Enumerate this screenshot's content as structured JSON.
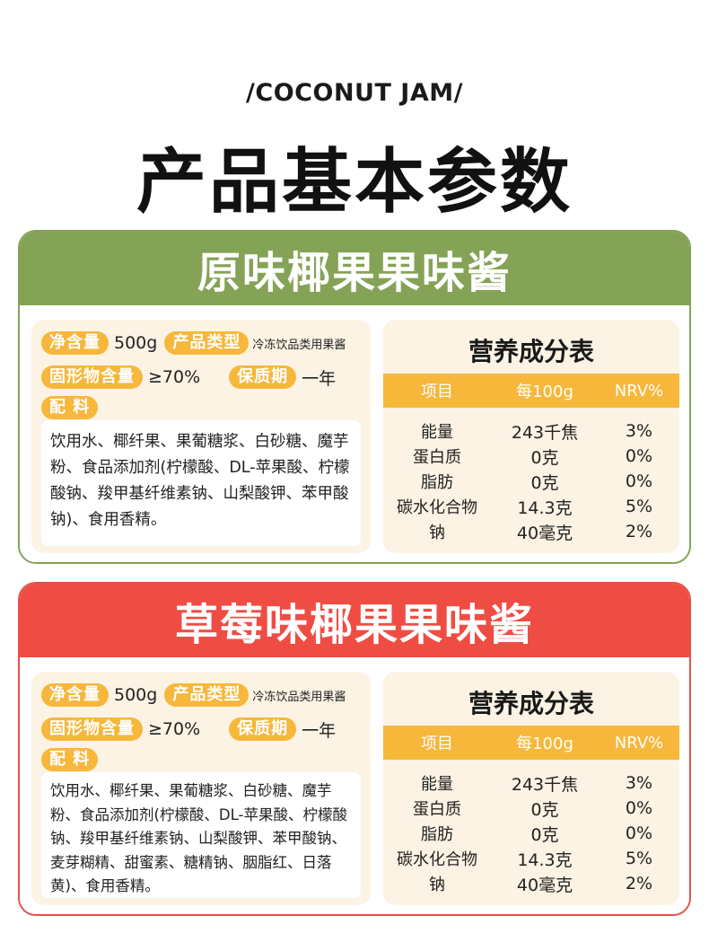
{
  "header": {
    "subtitle": "/COCONUT JAM/",
    "title": "产品基本参数"
  },
  "products": [
    {
      "name": "原味椰果果味酱",
      "net_label": "净含量",
      "net_value": "500g",
      "type_label": "产品类型",
      "type_value": "冷冻饮品类用果酱",
      "solid_label": "固形物含量",
      "solid_value": "≥70%",
      "shelf_label": "保质期",
      "shelf_value": "一年",
      "ing_label": "配 料",
      "ingredients": "饮用水、椰纤果、果葡糖浆、白砂糖、魔芋粉、食品添加剂(柠檬酸、DL-苹果酸、柠檬酸钠、羧甲基纤维素钠、山梨酸钾、苯甲酸钠)、食用香精。",
      "nutrition": {
        "title": "营养成分表",
        "headers": [
          "项目",
          "每100g",
          "NRV%"
        ],
        "rows": [
          [
            "能量",
            "243千焦",
            "3%"
          ],
          [
            "蛋白质",
            "0克",
            "0%"
          ],
          [
            "脂肪",
            "0克",
            "0%"
          ],
          [
            "碳水化合物",
            "14.3克",
            "5%"
          ],
          [
            "钠",
            "40毫克",
            "2%"
          ]
        ]
      }
    },
    {
      "name": "草莓味椰果果味酱",
      "net_label": "净含量",
      "net_value": "500g",
      "type_label": "产品类型",
      "type_value": "冷冻饮品类用果酱",
      "solid_label": "固形物含量",
      "solid_value": "≥70%",
      "shelf_label": "保质期",
      "shelf_value": "一年",
      "ing_label": "配 料",
      "ingredients": "饮用水、椰纤果、果葡糖浆、白砂糖、魔芋粉、食品添加剂(柠檬酸、DL-苹果酸、柠檬酸钠、羧甲基纤维素钠、山梨酸钾、苯甲酸钠、麦芽糊精、甜蜜素、糖精钠、胭脂红、日落黄)、食用香精。",
      "nutrition": {
        "title": "营养成分表",
        "headers": [
          "项目",
          "每100g",
          "NRV%"
        ],
        "rows": [
          [
            "能量",
            "243千焦",
            "3%"
          ],
          [
            "蛋白质",
            "0克",
            "0%"
          ],
          [
            "脂肪",
            "0克",
            "0%"
          ],
          [
            "碳水化合物",
            "14.3克",
            "5%"
          ],
          [
            "钠",
            "40毫克",
            "2%"
          ]
        ]
      }
    }
  ],
  "colors": {
    "green": "#85a356",
    "red": "#ef4d44",
    "tag": "#f7b73b",
    "panel": "#fcf3e4"
  }
}
